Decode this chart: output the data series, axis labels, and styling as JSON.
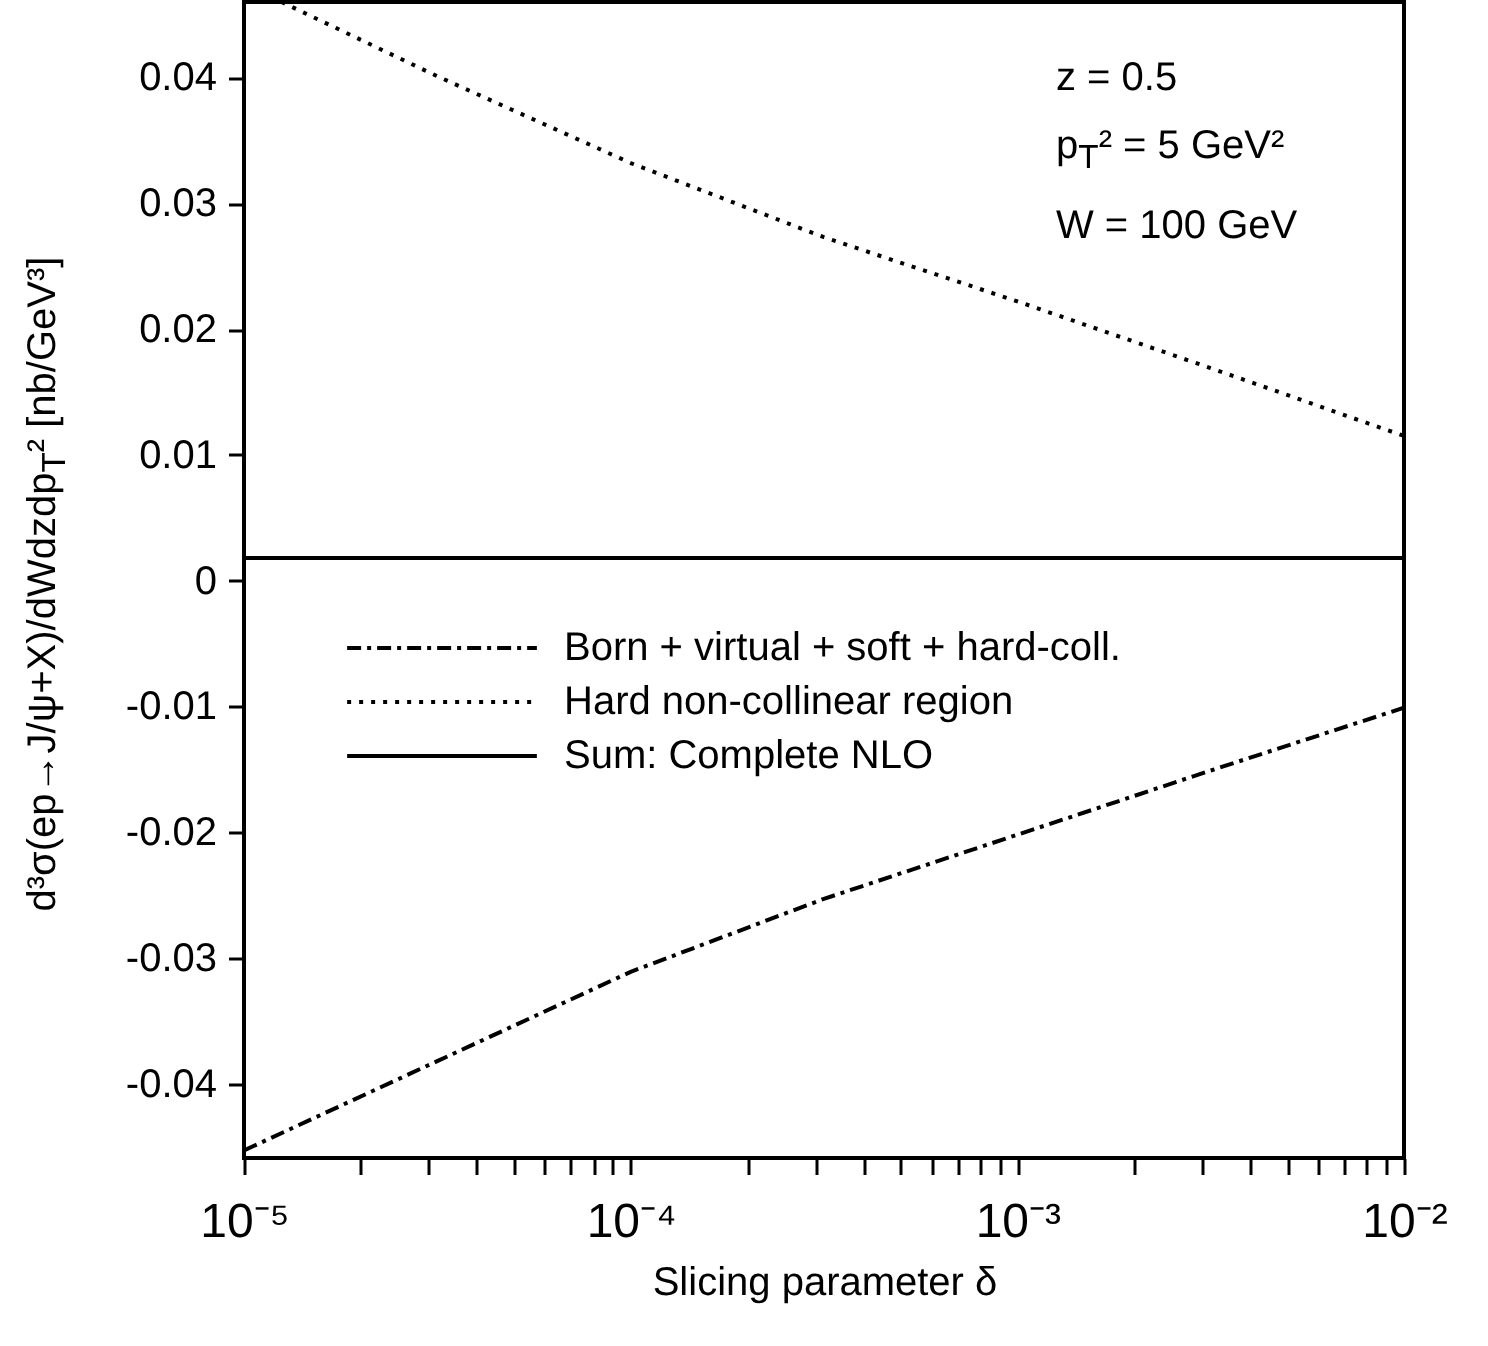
{
  "chart_data": {
    "type": "line",
    "xlabel": "Slicing parameter δ",
    "ylabel": "d³σ(ep→J/ψ+X)/dWdzdp$_{T}$²  [nb/GeV³]",
    "annotations": [
      "z = 0.5",
      "p$_{T}$² = 5 GeV²",
      "W = 100 GeV"
    ],
    "log": "x",
    "legend": "left",
    "grid": false,
    "xlim": [
      1e-05,
      0.01
    ],
    "ylim": [
      -0.0459,
      0.046
    ],
    "xticks": [
      {
        "value": 1e-05,
        "label": "10⁻⁵"
      },
      {
        "value": 2e-05,
        "label": null
      },
      {
        "value": 3e-05,
        "label": null
      },
      {
        "value": 4e-05,
        "label": null
      },
      {
        "value": 5e-05,
        "label": null
      },
      {
        "value": 6e-05,
        "label": null
      },
      {
        "value": 7e-05,
        "label": null
      },
      {
        "value": 8e-05,
        "label": null
      },
      {
        "value": 9e-05,
        "label": null
      },
      {
        "value": 0.0001,
        "label": "10⁻⁴"
      },
      {
        "value": 0.0002,
        "label": null
      },
      {
        "value": 0.0003,
        "label": null
      },
      {
        "value": 0.0004,
        "label": null
      },
      {
        "value": 0.0005,
        "label": null
      },
      {
        "value": 0.0006,
        "label": null
      },
      {
        "value": 0.0007,
        "label": null
      },
      {
        "value": 0.0008,
        "label": null
      },
      {
        "value": 0.0009,
        "label": null
      },
      {
        "value": 0.001,
        "label": "10⁻³"
      },
      {
        "value": 0.002,
        "label": null
      },
      {
        "value": 0.003,
        "label": null
      },
      {
        "value": 0.004,
        "label": null
      },
      {
        "value": 0.005,
        "label": null
      },
      {
        "value": 0.006,
        "label": null
      },
      {
        "value": 0.007,
        "label": null
      },
      {
        "value": 0.008,
        "label": null
      },
      {
        "value": 0.009,
        "label": null
      },
      {
        "value": 0.01,
        "label": "10⁻²"
      }
    ],
    "yticks": [
      -0.04,
      -0.03,
      -0.02,
      -0.01,
      0,
      0.01,
      0.02,
      0.03,
      0.04
    ],
    "x": [
      1.25e-05,
      3.16e-05,
      0.0001,
      0.000316,
      0.001,
      0.00316,
      0.01
    ],
    "series": [
      {
        "name": "Born + virtual + soft + hard-coll.",
        "color": "#000000",
        "line_style": "dashdot",
        "x": [
          1e-05,
          3.16e-05,
          0.0001,
          0.000316,
          0.001,
          0.00316,
          0.01
        ],
        "values": [
          -0.0453,
          -0.0382,
          -0.0311,
          -0.0253,
          -0.0202,
          -0.0151,
          -0.0101
        ]
      },
      {
        "name": "Hard non-collinear region",
        "color": "#000000",
        "line_style": "dotted",
        "values": [
          0.046,
          0.0401,
          0.0332,
          0.0273,
          0.0222,
          0.0169,
          0.0115
        ]
      },
      {
        "name": "Sum: Complete NLO",
        "color": "#000000",
        "line_style": "solid",
        "x": [
          1e-05,
          3.16e-05,
          0.0001,
          0.000316,
          0.001,
          0.00316,
          0.01
        ],
        "values": [
          0.0018,
          0.0018,
          0.0018,
          0.0018,
          0.0018,
          0.0018,
          0.0018
        ]
      }
    ]
  }
}
